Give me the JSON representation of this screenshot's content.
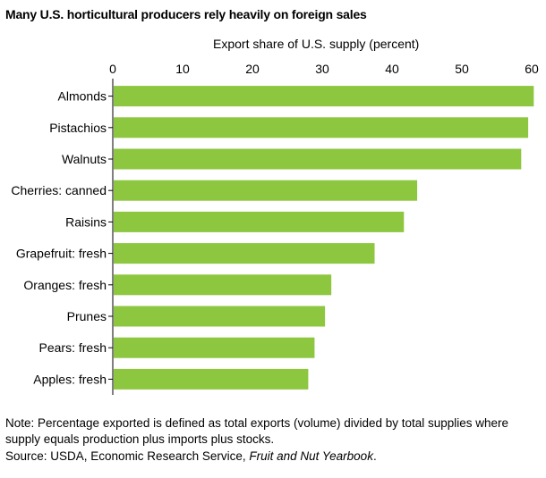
{
  "title": "Many U.S. horticultural producers rely heavily on foreign sales",
  "note": "Note: Percentage exported is defined as total exports (volume) divided by total supplies where supply equals production plus imports plus stocks.",
  "source": {
    "prefix": "Source:  USDA, Economic Research Service, ",
    "publication": "Fruit and Nut Yearbook",
    "suffix": "."
  },
  "chart_data": {
    "type": "bar",
    "orientation": "horizontal",
    "xlabel": "Export share of U.S. supply (percent)",
    "xlim": [
      0,
      60
    ],
    "xticks": [
      0,
      10,
      20,
      30,
      40,
      50,
      60
    ],
    "axis_position": "top",
    "grid": false,
    "bar_color": "#8dc63f",
    "categories": [
      "Almonds",
      "Pistachios",
      "Walnuts",
      "Cherries: canned",
      "Raisins",
      "Grapefruit: fresh",
      "Oranges: fresh",
      "Prunes",
      "Pears: fresh",
      "Apples: fresh"
    ],
    "values": [
      60.3,
      59.5,
      58.5,
      43.6,
      41.7,
      37.5,
      31.3,
      30.4,
      28.9,
      28.0
    ]
  }
}
